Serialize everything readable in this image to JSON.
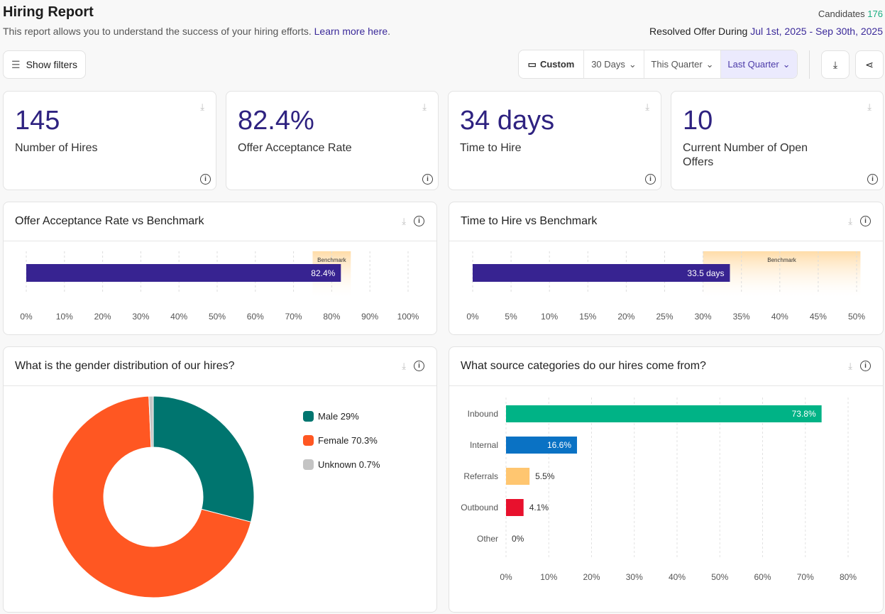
{
  "header": {
    "title": "Hiring Report",
    "subtitle": "This report allows you to understand the success of your hiring efforts.",
    "learn_more": "Learn more here",
    "candidates_label": "Candidates",
    "candidates_value": "176",
    "resolved_label": "Resolved Offer During",
    "resolved_range": "Jul 1st, 2025 - Sep 30th, 2025"
  },
  "toolbar": {
    "show_filters": "Show filters",
    "custom": "Custom",
    "ranges": [
      "30 Days",
      "This Quarter",
      "Last Quarter"
    ],
    "active": "Last Quarter"
  },
  "kpis": [
    {
      "value": "145",
      "label": "Number of Hires"
    },
    {
      "value": "82.4%",
      "label": "Offer Acceptance Rate"
    },
    {
      "value": "34 days",
      "label": "Time to Hire"
    },
    {
      "value": "10",
      "label": "Current Number of Open Offers"
    }
  ],
  "chart_data": [
    {
      "type": "bar",
      "title": "Offer Acceptance Rate vs Benchmark",
      "value": 82.4,
      "label": "82.4%",
      "benchmark_label": "Benchmark",
      "benchmark_range": [
        75,
        85
      ],
      "xlim": [
        0,
        100
      ],
      "ticks": [
        "0%",
        "10%",
        "20%",
        "30%",
        "40%",
        "50%",
        "60%",
        "70%",
        "80%",
        "90%",
        "100%"
      ],
      "color": "#372391"
    },
    {
      "type": "bar",
      "title": "Time to Hire vs Benchmark",
      "value": 33.5,
      "label": "33.5 days",
      "benchmark_label": "Benchmark",
      "benchmark_range": [
        30,
        50.5
      ],
      "xlim": [
        0,
        50
      ],
      "ticks": [
        "0%",
        "5%",
        "10%",
        "15%",
        "20%",
        "25%",
        "30%",
        "35%",
        "40%",
        "45%",
        "50%"
      ],
      "color": "#372391"
    },
    {
      "type": "pie",
      "title": "What is the gender distribution of our hires?",
      "slices": [
        {
          "name": "Male",
          "value": 29,
          "label": "Male 29%",
          "color": "#00756f"
        },
        {
          "name": "Female",
          "value": 70.3,
          "label": "Female 70.3%",
          "color": "#ff5722"
        },
        {
          "name": "Unknown",
          "value": 0.7,
          "label": "Unknown 0.7%",
          "color": "#c4c4c4"
        }
      ]
    },
    {
      "type": "bar",
      "title": "What source categories do our hires come from?",
      "categories": [
        "Inbound",
        "Internal",
        "Referrals",
        "Outbound",
        "Other"
      ],
      "values": [
        73.8,
        16.6,
        5.5,
        4.1,
        0
      ],
      "labels": [
        "73.8%",
        "16.6%",
        "5.5%",
        "4.1%",
        "0%"
      ],
      "colors": [
        "#00b386",
        "#0a72c4",
        "#ffc670",
        "#e8112d",
        "#999999"
      ],
      "xlim": [
        0,
        80
      ],
      "ticks": [
        "0%",
        "10%",
        "20%",
        "30%",
        "40%",
        "50%",
        "60%",
        "70%",
        "80%"
      ]
    }
  ]
}
